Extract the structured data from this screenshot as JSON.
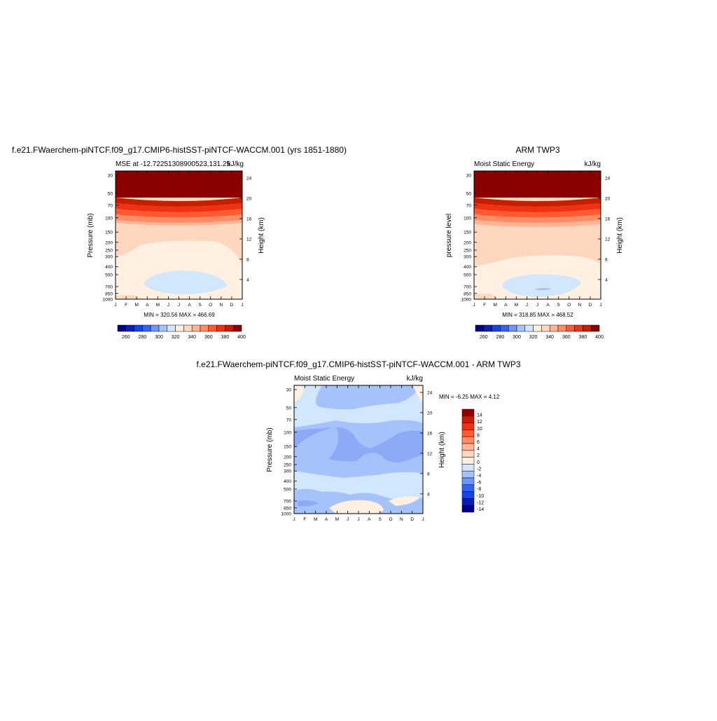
{
  "colors": {
    "abs_scale": [
      "#00008b",
      "#0a1eb4",
      "#1446e6",
      "#3264f0",
      "#6e96f5",
      "#a5c3fa",
      "#d2e6fc",
      "#fff0e1",
      "#ffd7be",
      "#ffb496",
      "#ff8c64",
      "#ff5a32",
      "#f03214",
      "#c81e00",
      "#8b0000"
    ],
    "diff_scale": [
      "#00008b",
      "#0a1eb4",
      "#1446e6",
      "#3264f0",
      "#6e96f5",
      "#a5c3fa",
      "#d2e6fc",
      "#fff0e1",
      "#ffd7be",
      "#ffb496",
      "#ff8c64",
      "#ff5a32",
      "#f03214",
      "#c81e00",
      "#8b0000"
    ],
    "mse_levels": {
      "top": "#8b0000",
      "band1": "#c81e00",
      "band2": "#f03214",
      "band3": "#ff5a32",
      "band4": "#ff8c64",
      "band5": "#ffb496",
      "band6": "#ffd7be",
      "band7": "#fff0e1",
      "low": "#d2e6fc",
      "lowest": "#a5c3fa"
    },
    "diff_levels": {
      "neutral": "#d2e6fc",
      "neg2": "#a5c3fa",
      "neg4": "#8caaf5",
      "pos2": "#fff0e1",
      "pos4": "#ffd7be"
    }
  },
  "panel_left": {
    "title": "f.e21.FWaerchem-piNTCF.f09_g17.CMIP6-histSST-piNTCF-WACCM.001 (yrs 1851-1880)",
    "subtitle_left": "MSE at -12.72251308900523,131.25",
    "subtitle_right": "kJ/kg",
    "ylabel": "Pressure (mb)",
    "ylabel_right": "Height (km)",
    "minmax": "MIN = 320.56 MAX = 466.69"
  },
  "panel_right": {
    "title": "ARM TWP3",
    "subtitle_left": "Moist Static Energy",
    "subtitle_right": "kJ/kg",
    "ylabel": "pressure level",
    "ylabel_right": "Height (km)",
    "minmax": "MIN = 318.85 MAX = 468.52"
  },
  "panel_diff": {
    "title": "f.e21.FWaerchem-piNTCF.f09_g17.CMIP6-histSST-piNTCF-WACCM.001 - ARM TWP3",
    "subtitle_left": "Moist Static Energy",
    "subtitle_right": "kJ/kg",
    "ylabel": "Pressure (mb)",
    "ylabel_right": "Height (km)",
    "minmax": "MIN =  -6.25 MAX =   4.12"
  },
  "chart_data": [
    {
      "type": "heatmap",
      "title": "f.e21.FWaerchem-piNTCF.f09_g17.CMIP6-histSST-piNTCF-WACCM.001 (yrs 1851-1880)",
      "subtitle": "MSE at -12.72251308900523,131.25",
      "units": "kJ/kg",
      "x_ticks": [
        "J",
        "F",
        "M",
        "A",
        "M",
        "J",
        "J",
        "A",
        "S",
        "O",
        "N",
        "D",
        "J"
      ],
      "y_ticks": [
        "30",
        "50",
        "70",
        "100",
        "150",
        "200",
        "250",
        "300",
        "400",
        "500",
        "700",
        "850",
        "1000"
      ],
      "y_right_ticks": [
        "24",
        "20",
        "16",
        "12",
        "8",
        "4"
      ],
      "ylabel": "Pressure (mb)",
      "ylabel_right": "Height (km)",
      "min": 320.56,
      "max": 466.69,
      "colorbar_labels": [
        "260",
        "280",
        "300",
        "320",
        "340",
        "360",
        "380",
        "400"
      ]
    },
    {
      "type": "heatmap",
      "title": "ARM TWP3",
      "subtitle": "Moist Static Energy",
      "units": "kJ/kg",
      "x_ticks": [
        "J",
        "F",
        "M",
        "A",
        "M",
        "J",
        "J",
        "A",
        "S",
        "O",
        "N",
        "D",
        "J"
      ],
      "y_ticks": [
        "30",
        "50",
        "70",
        "100",
        "150",
        "200",
        "250",
        "300",
        "400",
        "500",
        "700",
        "850",
        "1000"
      ],
      "y_right_ticks": [
        "24",
        "20",
        "16",
        "12",
        "8",
        "4"
      ],
      "ylabel": "pressure level",
      "ylabel_right": "Height (km)",
      "min": 318.85,
      "max": 468.52,
      "colorbar_labels": [
        "260",
        "280",
        "300",
        "320",
        "340",
        "360",
        "380",
        "400"
      ]
    },
    {
      "type": "heatmap",
      "title": "f.e21.FWaerchem-piNTCF.f09_g17.CMIP6-histSST-piNTCF-WACCM.001 - ARM TWP3",
      "subtitle": "Moist Static Energy",
      "units": "kJ/kg",
      "x_ticks": [
        "J",
        "F",
        "M",
        "A",
        "M",
        "J",
        "J",
        "A",
        "S",
        "O",
        "N",
        "D",
        "J"
      ],
      "y_ticks": [
        "30",
        "50",
        "70",
        "100",
        "150",
        "200",
        "250",
        "300",
        "400",
        "500",
        "700",
        "850",
        "1000"
      ],
      "y_right_ticks": [
        "24",
        "20",
        "16",
        "12",
        "8",
        "4"
      ],
      "ylabel": "Pressure (mb)",
      "ylabel_right": "Height (km)",
      "min": -6.25,
      "max": 4.12,
      "colorbar_labels": [
        "14",
        "12",
        "10",
        "8",
        "6",
        "4",
        "2",
        "0",
        "-2",
        "-4",
        "-6",
        "-8",
        "-10",
        "-12",
        "-14"
      ]
    }
  ]
}
